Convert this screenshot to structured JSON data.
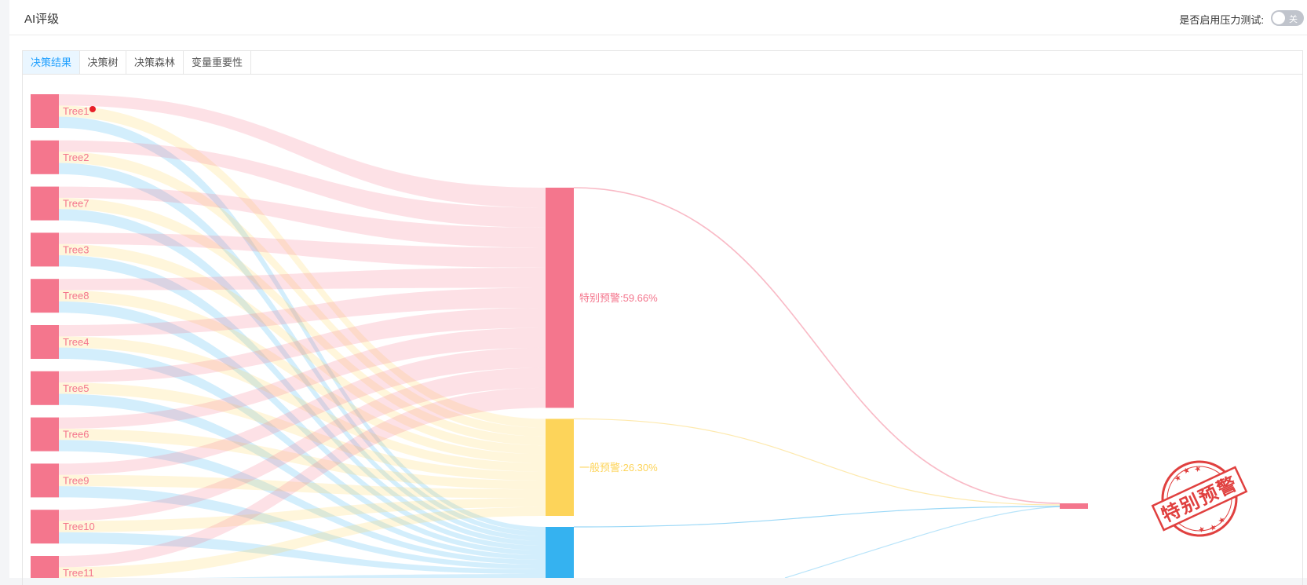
{
  "header": {
    "title": "AI评级",
    "stress_test_label": "是否启用压力测试:",
    "stress_test_switch": "关"
  },
  "tabs": [
    {
      "label": "决策结果",
      "active": true
    },
    {
      "label": "决策树",
      "active": false
    },
    {
      "label": "决策森林",
      "active": false
    },
    {
      "label": "变量重要性",
      "active": false
    }
  ],
  "chart_data": {
    "type": "sankey",
    "colors": {
      "special": "#f4768d",
      "general": "#fdd45a",
      "normal": "#35b2f0"
    },
    "sources": [
      "Tree1",
      "Tree2",
      "Tree7",
      "Tree3",
      "Tree8",
      "Tree4",
      "Tree5",
      "Tree6",
      "Tree9",
      "Tree10",
      "Tree11"
    ],
    "targets": [
      {
        "label": "特别预警:59.66%",
        "share": 59.66,
        "color": "#f4768d"
      },
      {
        "label": "一般预警:26.30%",
        "share": 26.3,
        "color": "#fdd45a"
      },
      {
        "label": "",
        "share": 14.04,
        "color": "#35b2f0"
      }
    ],
    "stamp_text": "特别预警"
  }
}
